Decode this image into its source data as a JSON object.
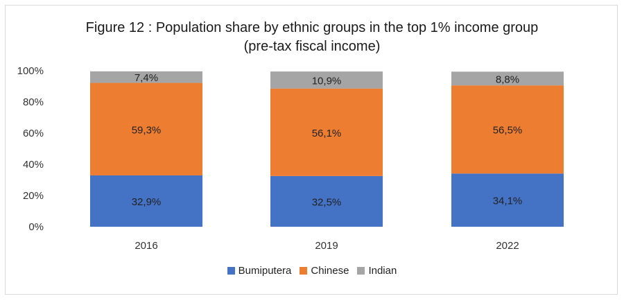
{
  "chart_data": {
    "type": "bar",
    "stacked": true,
    "title_line1": "Figure 12 : Population share by ethnic groups in the top 1% income group",
    "title_line2": "(pre-tax fiscal income)",
    "categories": [
      "2016",
      "2019",
      "2022"
    ],
    "series": [
      {
        "name": "Bumiputera",
        "color": "#4472c4",
        "values": [
          32.9,
          32.5,
          34.1
        ],
        "labels": [
          "32,9%",
          "32,5%",
          "34,1%"
        ]
      },
      {
        "name": "Chinese",
        "color": "#ed7d31",
        "values": [
          59.3,
          56.1,
          56.5
        ],
        "labels": [
          "59,3%",
          "56,1%",
          "56,5%"
        ]
      },
      {
        "name": "Indian",
        "color": "#a5a5a5",
        "values": [
          7.4,
          10.9,
          8.8
        ],
        "labels": [
          "7,4%",
          "10,9%",
          "8,8%"
        ]
      }
    ],
    "y_ticks": [
      "0%",
      "20%",
      "40%",
      "60%",
      "80%",
      "100%"
    ],
    "ylim": [
      0,
      100
    ],
    "legend_position": "bottom",
    "grid": false
  }
}
